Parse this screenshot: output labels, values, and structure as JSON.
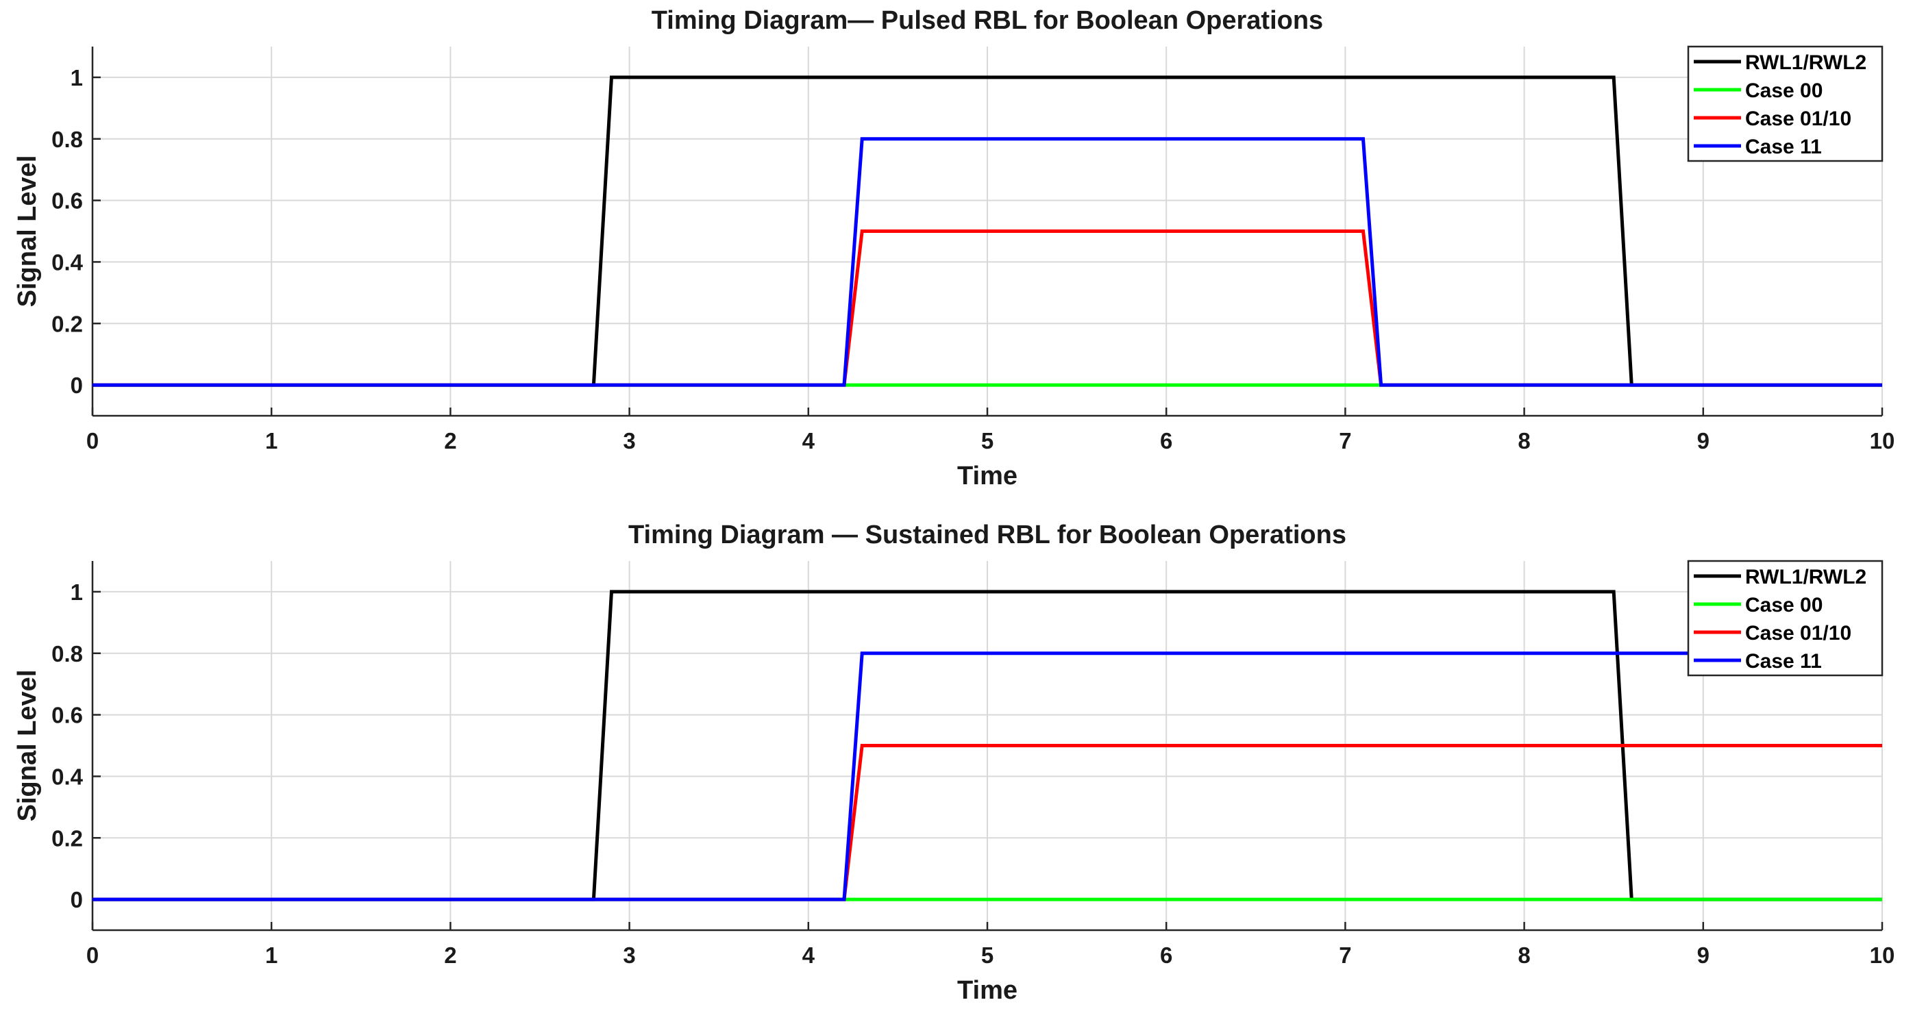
{
  "chart_data": [
    {
      "type": "line",
      "title": "Timing Diagram— Pulsed RBL for Boolean Operations",
      "xlabel": "Time",
      "ylabel": "Signal Level",
      "xlim": [
        0,
        10
      ],
      "ylim": [
        -0.1,
        1.1
      ],
      "xticks": [
        0,
        1,
        2,
        3,
        4,
        5,
        6,
        7,
        8,
        9,
        10
      ],
      "yticks": [
        0,
        0.2,
        0.4,
        0.6,
        0.8,
        1
      ],
      "grid": true,
      "legend_position": "top-right",
      "series": [
        {
          "name": "RWL1/RWL2",
          "color": "#000000",
          "x": [
            0,
            2.8,
            2.9,
            8.5,
            8.6,
            10
          ],
          "y": [
            0,
            0,
            1,
            1,
            0,
            0
          ]
        },
        {
          "name": "Case 00",
          "color": "#00ff00",
          "x": [
            0,
            10
          ],
          "y": [
            0,
            0
          ]
        },
        {
          "name": "Case 01/10",
          "color": "#ff0000",
          "x": [
            0,
            4.2,
            4.3,
            7.1,
            7.2,
            10
          ],
          "y": [
            0,
            0,
            0.5,
            0.5,
            0,
            0
          ]
        },
        {
          "name": "Case 11",
          "color": "#0000ff",
          "x": [
            0,
            4.2,
            4.3,
            7.1,
            7.2,
            10
          ],
          "y": [
            0,
            0,
            0.8,
            0.8,
            0,
            0
          ]
        }
      ]
    },
    {
      "type": "line",
      "title": "Timing Diagram — Sustained RBL for Boolean Operations",
      "xlabel": "Time",
      "ylabel": "Signal Level",
      "xlim": [
        0,
        10
      ],
      "ylim": [
        -0.1,
        1.1
      ],
      "xticks": [
        0,
        1,
        2,
        3,
        4,
        5,
        6,
        7,
        8,
        9,
        10
      ],
      "yticks": [
        0,
        0.2,
        0.4,
        0.6,
        0.8,
        1
      ],
      "grid": true,
      "legend_position": "top-right",
      "series": [
        {
          "name": "RWL1/RWL2",
          "color": "#000000",
          "x": [
            0,
            2.8,
            2.9,
            8.5,
            8.6,
            10
          ],
          "y": [
            0,
            0,
            1,
            1,
            0,
            0
          ]
        },
        {
          "name": "Case 00",
          "color": "#00ff00",
          "x": [
            0,
            10
          ],
          "y": [
            0,
            0
          ]
        },
        {
          "name": "Case 01/10",
          "color": "#ff0000",
          "x": [
            0,
            4.2,
            4.3,
            10
          ],
          "y": [
            0,
            0,
            0.5,
            0.5
          ]
        },
        {
          "name": "Case 11",
          "color": "#0000ff",
          "x": [
            0,
            4.2,
            4.3,
            10
          ],
          "y": [
            0,
            0,
            0.8,
            0.8
          ]
        }
      ]
    }
  ]
}
